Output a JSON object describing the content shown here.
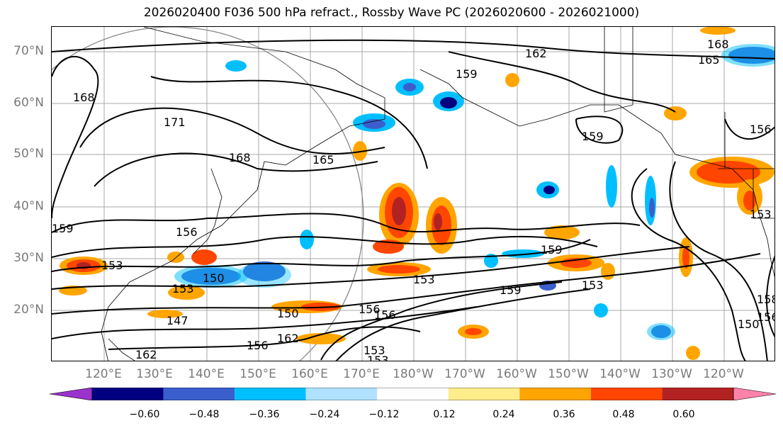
{
  "title": "2026020400 F036 500 hPa refract., Rossby Wave PC (2026020600 - 2026021000)",
  "lat_labels": [
    "70°N",
    "60°N",
    "50°N",
    "40°N",
    "30°N",
    "20°N"
  ],
  "lon_labels": [
    "120°E",
    "130°E",
    "140°E",
    "150°E",
    "160°E",
    "170°E",
    "180°W",
    "170°W",
    "160°W",
    "150°W",
    "140°W",
    "130°W",
    "120°W"
  ],
  "colorbar": {
    "colors": [
      "#9a32cd",
      "#000080",
      "#3a5fcd",
      "#00bfff",
      "#b0e2ff",
      "#ffffff",
      "#ffec8b",
      "#ffa500",
      "#ff4500",
      "#b22222",
      "#ff82ab"
    ],
    "tick_labels": [
      "−0.60",
      "−0.48",
      "−0.36",
      "−0.24",
      "−0.12",
      "0.12",
      "0.24",
      "0.36",
      "0.48",
      "0.60"
    ]
  },
  "contour_labels": [
    "162",
    "168",
    "165",
    "159",
    "168",
    "171",
    "168",
    "165",
    "159",
    "156",
    "156",
    "159",
    "156",
    "153",
    "153",
    "150",
    "153",
    "159",
    "153",
    "159",
    "153",
    "150",
    "156",
    "147",
    "162",
    "156",
    "162",
    "153",
    "158",
    "150",
    "156",
    "153"
  ]
}
